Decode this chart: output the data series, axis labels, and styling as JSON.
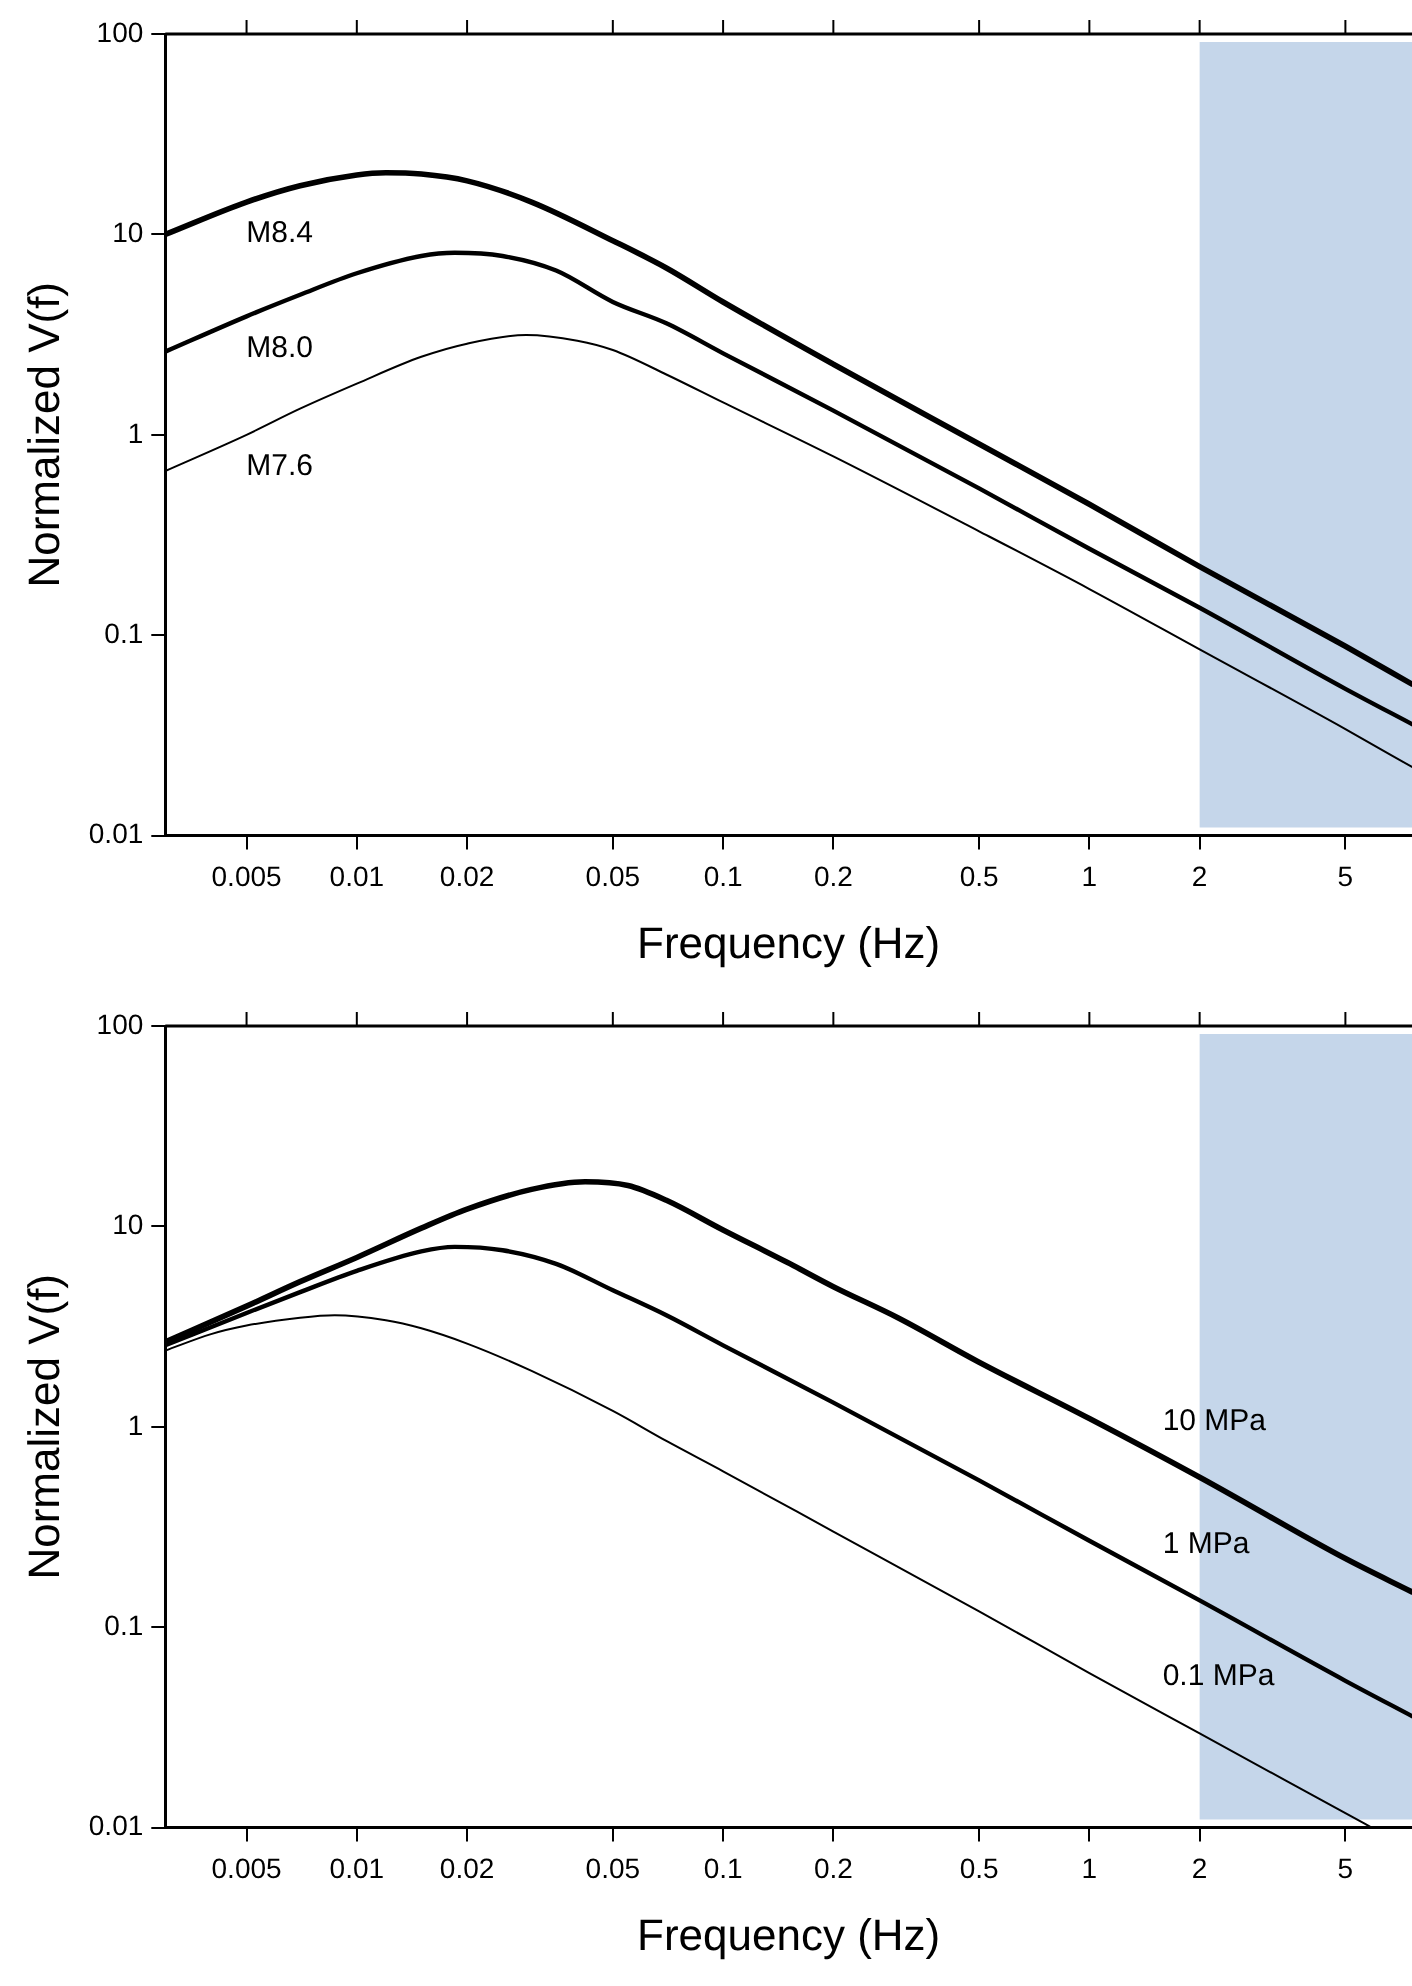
{
  "chart_data": [
    {
      "type": "line",
      "xlabel": "Frequency (Hz)",
      "ylabel": "Normalized V(f)",
      "log": "xy",
      "grid": false,
      "legend": false,
      "marker": "none",
      "line_style": "solid",
      "xlim": [
        0.003,
        7.6
      ],
      "ylim": [
        0.01,
        100
      ],
      "xticks": [
        0.005,
        0.01,
        0.02,
        0.05,
        0.1,
        0.2,
        0.5,
        1,
        2,
        5
      ],
      "yticks": [
        0.01,
        0.1,
        1,
        10,
        100
      ],
      "bands": [
        {
          "axis": "x",
          "from": 2,
          "to": 7.6,
          "color": "#c5d6ea"
        }
      ],
      "series": [
        {
          "name": "M8.4",
          "color": "#000000",
          "x": [
            0.003,
            0.005,
            0.007,
            0.01,
            0.012,
            0.015,
            0.02,
            0.03,
            0.05,
            0.07,
            0.1,
            0.2,
            0.5,
            1,
            2,
            5,
            7.6
          ],
          "values": [
            10,
            14.5,
            17.5,
            19.8,
            20.3,
            20,
            18.5,
            14.5,
            9.3,
            6.8,
            4.6,
            2.25,
            0.9,
            0.45,
            0.22,
            0.088,
            0.057
          ]
        },
        {
          "name": "M8.0",
          "color": "#000000",
          "x": [
            0.003,
            0.005,
            0.007,
            0.01,
            0.015,
            0.0185,
            0.025,
            0.035,
            0.05,
            0.07,
            0.1,
            0.2,
            0.5,
            1,
            2,
            5,
            7.6
          ],
          "values": [
            2.6,
            3.9,
            5,
            6.4,
            7.8,
            8.1,
            7.8,
            6.6,
            4.6,
            3.6,
            2.55,
            1.32,
            0.54,
            0.27,
            0.137,
            0.054,
            0.036
          ]
        },
        {
          "name": "M7.6",
          "color": "#000000",
          "x": [
            0.003,
            0.005,
            0.007,
            0.01,
            0.015,
            0.02,
            0.029,
            0.04,
            0.05,
            0.07,
            0.1,
            0.2,
            0.5,
            1,
            2,
            5,
            7.6
          ],
          "values": [
            0.66,
            1,
            1.35,
            1.8,
            2.45,
            2.85,
            3.15,
            2.95,
            2.65,
            2,
            1.45,
            0.78,
            0.33,
            0.17,
            0.085,
            0.034,
            0.022
          ]
        }
      ]
    },
    {
      "type": "line",
      "xlabel": "Frequency (Hz)",
      "ylabel": "Normalized V(f)",
      "log": "xy",
      "grid": false,
      "legend": false,
      "marker": "none",
      "line_style": "solid",
      "xlim": [
        0.003,
        7.6
      ],
      "ylim": [
        0.01,
        100
      ],
      "xticks": [
        0.005,
        0.01,
        0.02,
        0.05,
        0.1,
        0.2,
        0.5,
        1,
        2,
        5
      ],
      "yticks": [
        0.01,
        0.1,
        1,
        10,
        100
      ],
      "bands": [
        {
          "axis": "x",
          "from": 2,
          "to": 7.6,
          "color": "#c5d6ea"
        }
      ],
      "series": [
        {
          "name": "10 MPa",
          "color": "#000000",
          "x": [
            0.003,
            0.005,
            0.007,
            0.01,
            0.015,
            0.02,
            0.03,
            0.042,
            0.055,
            0.07,
            0.1,
            0.15,
            0.2,
            0.3,
            0.5,
            1,
            2,
            5,
            7.6
          ],
          "values": [
            2.65,
            4,
            5.3,
            7,
            9.8,
            12.2,
            15.3,
            16.7,
            16,
            13.5,
            9.6,
            6.6,
            5,
            3.5,
            2.1,
            1.1,
            0.56,
            0.22,
            0.15
          ]
        },
        {
          "name": "1 MPa",
          "color": "#000000",
          "x": [
            0.003,
            0.005,
            0.007,
            0.01,
            0.015,
            0.0185,
            0.025,
            0.035,
            0.05,
            0.07,
            0.1,
            0.2,
            0.5,
            1,
            2,
            5,
            7.6
          ],
          "values": [
            2.55,
            3.7,
            4.7,
            6,
            7.5,
            7.9,
            7.6,
            6.5,
            4.8,
            3.6,
            2.55,
            1.32,
            0.54,
            0.27,
            0.136,
            0.054,
            0.036
          ]
        },
        {
          "name": "0.1 MPa",
          "color": "#000000",
          "x": [
            0.003,
            0.004,
            0.005,
            0.007,
            0.0087,
            0.012,
            0.015,
            0.02,
            0.03,
            0.05,
            0.07,
            0.1,
            0.2,
            0.5,
            1,
            2,
            5,
            5.9
          ],
          "values": [
            2.4,
            2.9,
            3.2,
            3.5,
            3.6,
            3.4,
            3.1,
            2.6,
            1.9,
            1.2,
            0.85,
            0.6,
            0.3,
            0.12,
            0.059,
            0.0295,
            0.0118,
            0.01
          ]
        }
      ]
    }
  ]
}
